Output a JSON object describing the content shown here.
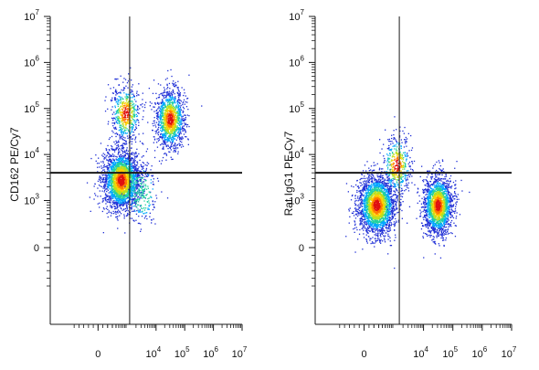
{
  "figure": {
    "colors": {
      "axis": "#1a1a1a",
      "gate": "#1a1a1a",
      "density": [
        "#1f2fd6",
        "#00a6ff",
        "#22d0a0",
        "#b8e020",
        "#ffd000",
        "#ff7a00",
        "#e01010"
      ]
    }
  },
  "chart_data": [
    {
      "type": "scatter",
      "title": "",
      "xlabel": "",
      "ylabel": "CD162 PE/Cy7",
      "x_scale": "biexponential",
      "y_scale": "biexponential",
      "xlim": [
        -1000,
        10000000
      ],
      "ylim": [
        -1000,
        10000000
      ],
      "x_ticks": [
        {
          "value": 0,
          "label": "0"
        },
        {
          "value": 10000,
          "label": "10",
          "exp": "4"
        },
        {
          "value": 100000,
          "label": "10",
          "exp": "5"
        },
        {
          "value": 1000000,
          "label": "10",
          "exp": "6"
        },
        {
          "value": 10000000,
          "label": "10",
          "exp": "7"
        }
      ],
      "y_ticks": [
        {
          "value": 0,
          "label": "0"
        },
        {
          "value": 1000,
          "label": "10",
          "exp": "3"
        },
        {
          "value": 10000,
          "label": "10",
          "exp": "4"
        },
        {
          "value": 100000,
          "label": "10",
          "exp": "5"
        },
        {
          "value": 1000000,
          "label": "10",
          "exp": "6"
        },
        {
          "value": 10000000,
          "label": "10",
          "exp": "7"
        }
      ],
      "quadrant_gate": {
        "x": 1200,
        "y": 4000
      },
      "populations": [
        {
          "x": 600,
          "y": 2800,
          "count": 2600
        },
        {
          "x": 850,
          "y": 80000,
          "count": 600
        },
        {
          "x": 30000,
          "y": 60000,
          "count": 1300
        },
        {
          "x": 3000,
          "y": 1500,
          "count": 250
        }
      ]
    },
    {
      "type": "scatter",
      "title": "",
      "xlabel": "",
      "ylabel": "Rat IgG1 PE-Cy7",
      "x_scale": "biexponential",
      "y_scale": "biexponential",
      "xlim": [
        -1000,
        10000000
      ],
      "ylim": [
        -1000,
        10000000
      ],
      "x_ticks": [
        {
          "value": 0,
          "label": "0"
        },
        {
          "value": 10000,
          "label": "10",
          "exp": "4"
        },
        {
          "value": 100000,
          "label": "10",
          "exp": "5"
        },
        {
          "value": 1000000,
          "label": "10",
          "exp": "6"
        },
        {
          "value": 10000000,
          "label": "10",
          "exp": "7"
        }
      ],
      "y_ticks": [
        {
          "value": 0,
          "label": "0"
        },
        {
          "value": 1000,
          "label": "10",
          "exp": "3"
        },
        {
          "value": 10000,
          "label": "10",
          "exp": "4"
        },
        {
          "value": 100000,
          "label": "10",
          "exp": "5"
        },
        {
          "value": 1000000,
          "label": "10",
          "exp": "6"
        },
        {
          "value": 10000000,
          "label": "10",
          "exp": "7"
        }
      ],
      "quadrant_gate": {
        "x": 1500,
        "y": 4000
      },
      "populations": [
        {
          "x": 250,
          "y": 800,
          "count": 2500
        },
        {
          "x": 30000,
          "y": 800,
          "count": 1900
        },
        {
          "x": 1200,
          "y": 6000,
          "count": 450
        }
      ]
    }
  ]
}
